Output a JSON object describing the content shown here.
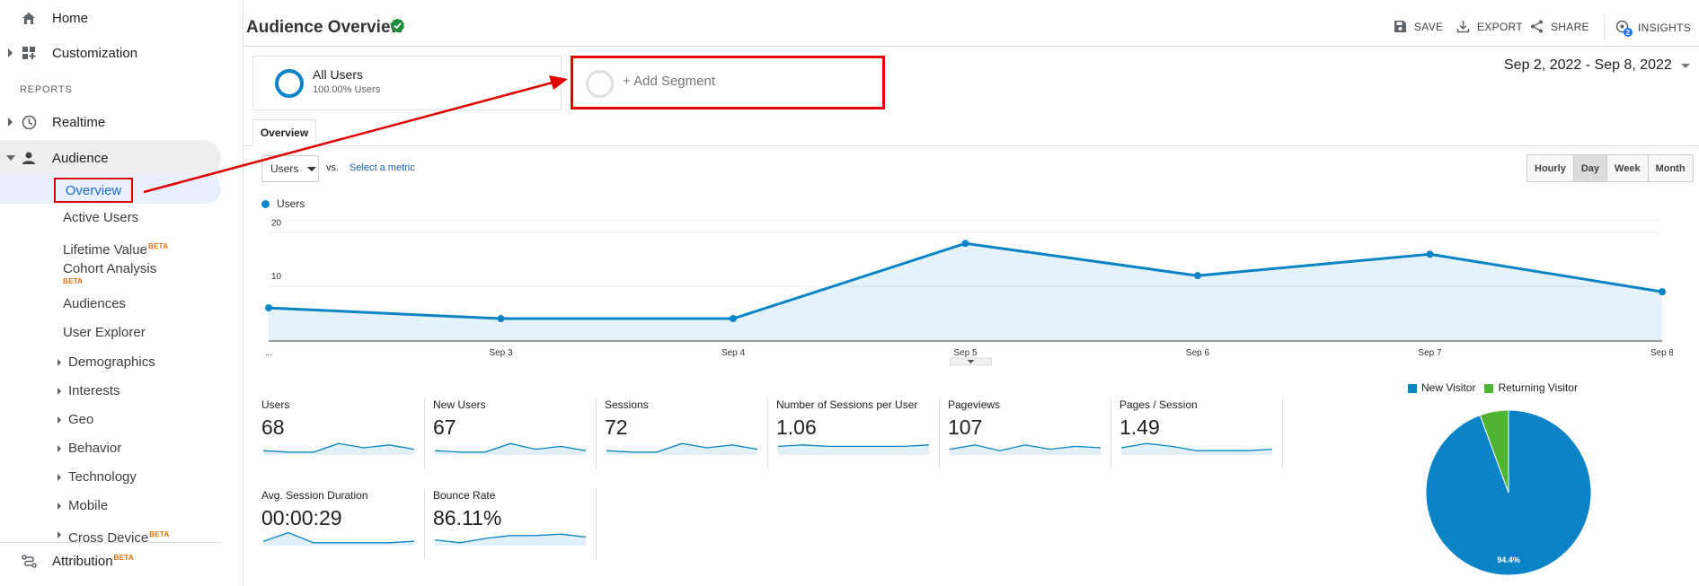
{
  "sidebar": {
    "home": "Home",
    "customization": "Customization",
    "reports_header": "REPORTS",
    "realtime": "Realtime",
    "audience": "Audience",
    "overview": "Overview",
    "items": [
      {
        "label": "Active Users",
        "beta": ""
      },
      {
        "label": "Lifetime Value",
        "beta": "BETA"
      },
      {
        "label": "Cohort Analysis",
        "beta": "BETA"
      },
      {
        "label": "Audiences",
        "beta": ""
      },
      {
        "label": "User Explorer",
        "beta": ""
      }
    ],
    "expandable": [
      {
        "label": "Demographics",
        "beta": ""
      },
      {
        "label": "Interests",
        "beta": ""
      },
      {
        "label": "Geo",
        "beta": ""
      },
      {
        "label": "Behavior",
        "beta": ""
      },
      {
        "label": "Technology",
        "beta": ""
      },
      {
        "label": "Mobile",
        "beta": ""
      },
      {
        "label": "Cross Device",
        "beta": "BETA"
      }
    ],
    "attribution": "Attribution",
    "attribution_beta": "BETA"
  },
  "header": {
    "title": "Audience Overview",
    "actions": {
      "save": "SAVE",
      "export": "EXPORT",
      "share": "SHARE",
      "insights": "INSIGHTS"
    },
    "insights_badge": "2"
  },
  "segment": {
    "name": "All Users",
    "sub": "100.00% Users",
    "add": "+ Add Segment"
  },
  "date_range": "Sep 2, 2022 - Sep 8, 2022",
  "tab": "Overview",
  "controls": {
    "metric": "Users",
    "vs": "vs.",
    "select_metric": "Select a metric",
    "granularity": [
      "Hourly",
      "Day",
      "Week",
      "Month"
    ],
    "active_granularity": "Day"
  },
  "colors": {
    "accent": "#0b84c7",
    "returning": "#50b432",
    "highlight_box": "#e00000"
  },
  "chart_data": [
    {
      "type": "area",
      "legend": "Users",
      "x": [
        "...",
        "Sep 3",
        "Sep 4",
        "Sep 5",
        "Sep 6",
        "Sep 7",
        "Sep 8"
      ],
      "series": [
        {
          "name": "Users",
          "values": [
            6,
            4,
            4,
            18,
            12,
            16,
            9
          ]
        }
      ],
      "yticks": [
        10,
        20
      ],
      "ylim": [
        0,
        20
      ],
      "grid": true
    },
    {
      "type": "pie",
      "legend_position": "top",
      "series": [
        {
          "name": "New Visitor",
          "values": [
            94.4
          ]
        },
        {
          "name": "Returning Visitor",
          "values": [
            5.6
          ]
        }
      ],
      "label": "94.4%"
    }
  ],
  "metrics": [
    {
      "name": "Users",
      "value": "68",
      "spark": [
        3,
        2,
        2,
        8,
        5,
        7,
        4
      ]
    },
    {
      "name": "New Users",
      "value": "67",
      "spark": [
        3,
        2,
        2,
        8,
        4,
        6,
        3
      ]
    },
    {
      "name": "Sessions",
      "value": "72",
      "spark": [
        3,
        2,
        2,
        8,
        5,
        7,
        4
      ]
    },
    {
      "name": "Number of Sessions per User",
      "value": "1.06",
      "spark": [
        6,
        7,
        6,
        6,
        6,
        6,
        7
      ]
    },
    {
      "name": "Pageviews",
      "value": "107",
      "spark": [
        4,
        7,
        3,
        7,
        4,
        6,
        5
      ]
    },
    {
      "name": "Pages / Session",
      "value": "1.49",
      "spark": [
        5,
        8,
        6,
        3,
        3,
        3,
        4
      ]
    },
    {
      "name": "Avg. Session Duration",
      "value": "00:00:29",
      "spark": [
        3,
        9,
        2,
        2,
        2,
        2,
        3
      ]
    },
    {
      "name": "Bounce Rate",
      "value": "86.11%",
      "spark": [
        4,
        2,
        5,
        7,
        7,
        8,
        6
      ]
    }
  ]
}
